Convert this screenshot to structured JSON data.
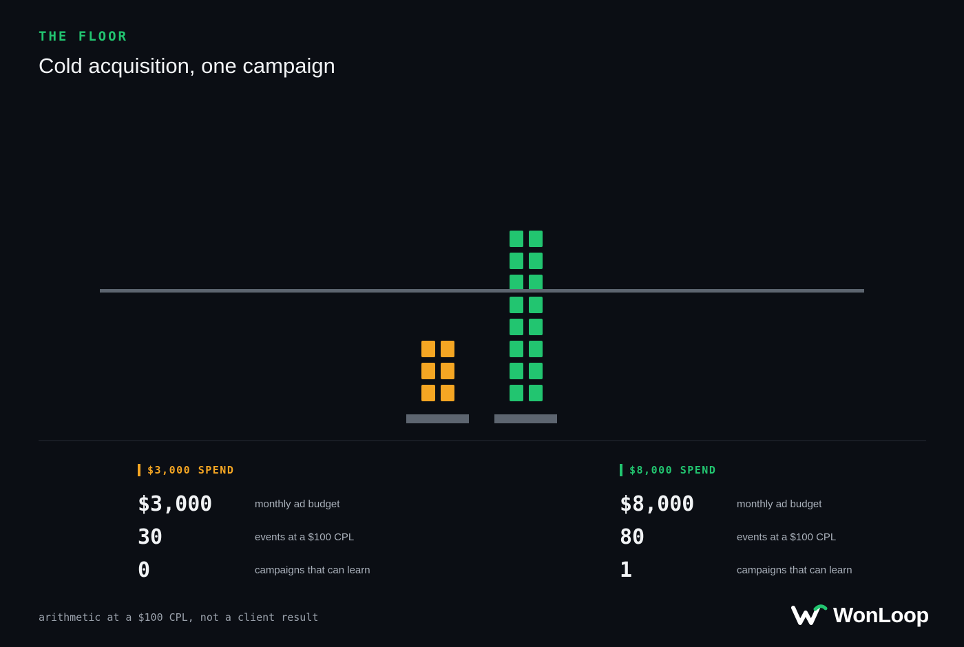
{
  "header": {
    "eyebrow": "THE FLOOR",
    "title": "Cold acquisition, one campaign"
  },
  "chart_data": {
    "type": "bar",
    "style": "unit-block stacks",
    "threshold": 50,
    "unit_per_block": 5,
    "series": [
      {
        "key": "spend_3000",
        "value": 30,
        "color": "#f5a623"
      },
      {
        "key": "spend_8000",
        "value": 80,
        "color": "#22c570"
      }
    ],
    "grid": false
  },
  "panels": [
    {
      "heading": "$3,000 SPEND",
      "color": "#f5a623",
      "rows": [
        {
          "value": "$3,000",
          "label": "monthly ad budget"
        },
        {
          "value": "30",
          "label": "events at a $100 CPL"
        },
        {
          "value": "0",
          "label": "campaigns that can learn"
        }
      ]
    },
    {
      "heading": "$8,000 SPEND",
      "color": "#22c570",
      "rows": [
        {
          "value": "$8,000",
          "label": "monthly ad budget"
        },
        {
          "value": "80",
          "label": "events at a $100 CPL"
        },
        {
          "value": "1",
          "label": "campaigns that can learn"
        }
      ]
    }
  ],
  "footnote": "arithmetic at a $100 CPL, not a client result",
  "brand": {
    "name": "WonLoop",
    "icon": "wonloop-logo-icon"
  },
  "colors": {
    "background": "#0b0e14",
    "threshold_line": "#5d6570",
    "base": "#5d6570",
    "accent_orange": "#f5a623",
    "accent_green": "#22c570"
  }
}
